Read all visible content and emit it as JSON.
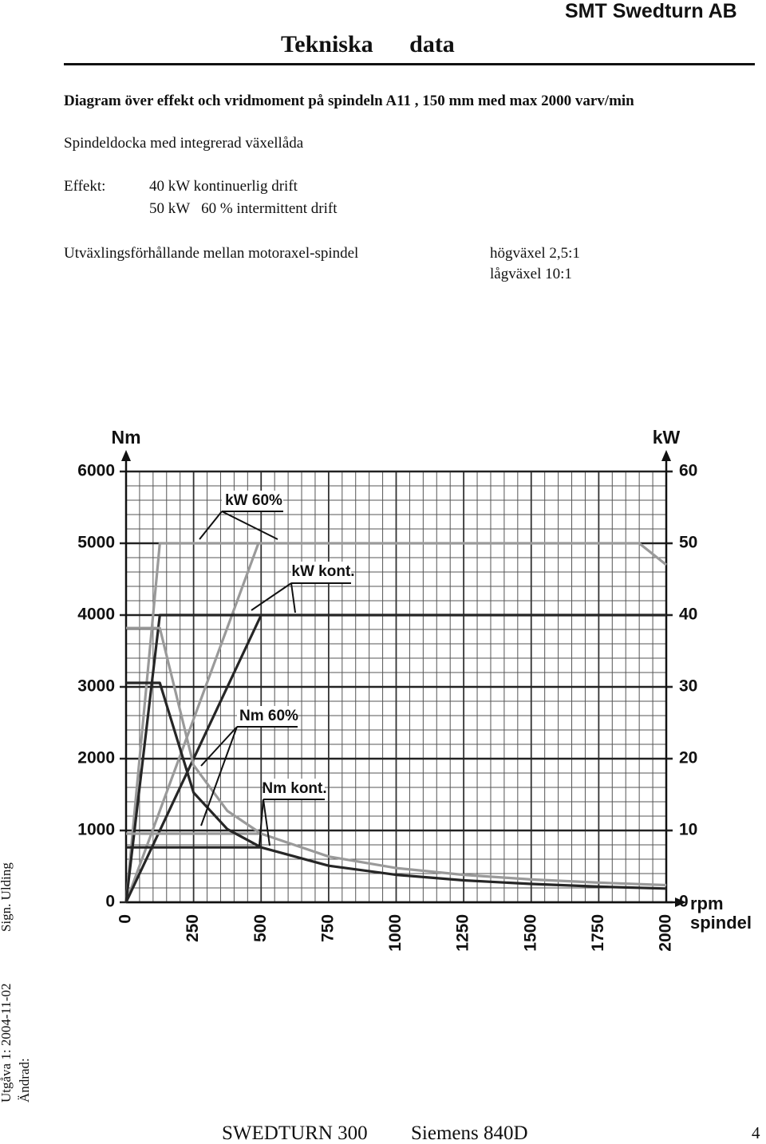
{
  "header": {
    "title": "Tekniska data",
    "company": "SMT Swedturn AB"
  },
  "heading": "Diagram över effekt och vridmoment på spindeln A11 , 150 mm med max 2000 varv/min",
  "subtitle": "Spindeldocka med integrerad växellåda",
  "effect": {
    "label": "Effekt:",
    "lines": [
      "40 kW kontinuerlig drift",
      "50 kW   60 % intermittent drift"
    ]
  },
  "ratio": {
    "label": "Utväxlingsförhållande mellan motoraxel-spindel",
    "lines": [
      "högväxel 2,5:1",
      "lågväxel 10:1"
    ]
  },
  "chart_data": {
    "type": "line",
    "ylabel": "Nm",
    "y2label": "kW",
    "xlabel_lines": [
      "rpm",
      "spindel"
    ],
    "xlim": [
      0,
      2000
    ],
    "xticks": [
      0,
      250,
      500,
      750,
      1000,
      1250,
      1500,
      1750,
      2000
    ],
    "ylim": [
      0,
      6000
    ],
    "yticks": [
      0,
      1000,
      2000,
      3000,
      4000,
      5000,
      6000
    ],
    "y2lim": [
      0,
      60
    ],
    "y2ticks": [
      0,
      10,
      20,
      30,
      40,
      50,
      60
    ],
    "grid": true,
    "series": [
      {
        "name": "kW 60%",
        "color": "#9a9a9a",
        "axis": "y2",
        "x": [
          0,
          125,
          1900,
          2000,
          null,
          0,
          490
        ],
        "values": [
          0,
          50,
          50,
          47,
          null,
          0,
          50
        ]
      },
      {
        "name": "kW kont.",
        "color": "#262626",
        "axis": "y2",
        "x": [
          0,
          125,
          2000,
          null,
          0,
          500
        ],
        "values": [
          0,
          40,
          40,
          null,
          0,
          40
        ]
      },
      {
        "name": "Nm 60%",
        "color": "#9a9a9a",
        "x": [
          0,
          125,
          250,
          375,
          500,
          750,
          1000,
          1250,
          1500,
          1750,
          2000,
          null,
          0,
          500
        ],
        "values": [
          3820,
          3820,
          1910,
          1273,
          955,
          637,
          477,
          382,
          318,
          273,
          239,
          null,
          955,
          955
        ]
      },
      {
        "name": "Nm kont.",
        "color": "#262626",
        "x": [
          0,
          125,
          250,
          375,
          500,
          750,
          1000,
          1250,
          1500,
          1750,
          2000,
          null,
          0,
          500
        ],
        "values": [
          3056,
          3056,
          1528,
          1019,
          764,
          509,
          382,
          306,
          255,
          218,
          191,
          null,
          764,
          764
        ]
      }
    ]
  },
  "footer": {
    "left": "SWEDTURN 300",
    "center": "Siemens 840D",
    "page": 4
  },
  "sidebar": {
    "issued": "Utgåva 1: 2004-11-02",
    "sign": "Sign. Ulding",
    "changed": "Ändrad:"
  }
}
